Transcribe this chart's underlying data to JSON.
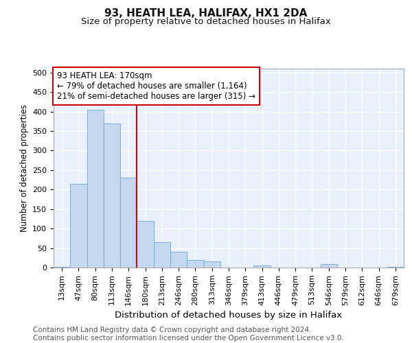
{
  "title": "93, HEATH LEA, HALIFAX, HX1 2DA",
  "subtitle": "Size of property relative to detached houses in Halifax",
  "xlabel": "Distribution of detached houses by size in Halifax",
  "ylabel": "Number of detached properties",
  "bar_labels": [
    "13sqm",
    "47sqm",
    "80sqm",
    "113sqm",
    "146sqm",
    "180sqm",
    "213sqm",
    "246sqm",
    "280sqm",
    "313sqm",
    "346sqm",
    "379sqm",
    "413sqm",
    "446sqm",
    "479sqm",
    "513sqm",
    "546sqm",
    "579sqm",
    "612sqm",
    "646sqm",
    "679sqm"
  ],
  "bar_values": [
    2,
    215,
    405,
    370,
    230,
    120,
    65,
    40,
    20,
    15,
    0,
    0,
    5,
    0,
    0,
    0,
    8,
    0,
    0,
    0,
    2
  ],
  "bar_color": "#c5d8f0",
  "bar_edge_color": "#7aafd4",
  "plot_bg_color": "#e8f0fb",
  "fig_bg_color": "#ffffff",
  "grid_color": "#ffffff",
  "vline_index": 5,
  "vline_color": "#cc0000",
  "annotation_line1": "93 HEATH LEA: 170sqm",
  "annotation_line2": "← 79% of detached houses are smaller (1,164)",
  "annotation_line3": "21% of semi-detached houses are larger (315) →",
  "annotation_box_edge_color": "#cc0000",
  "ylim_max": 510,
  "yticks": [
    0,
    50,
    100,
    150,
    200,
    250,
    300,
    350,
    400,
    450,
    500
  ],
  "footer": "Contains HM Land Registry data © Crown copyright and database right 2024.\nContains public sector information licensed under the Open Government Licence v3.0.",
  "title_fontsize": 11,
  "subtitle_fontsize": 9.5,
  "tick_fontsize": 8,
  "ylabel_fontsize": 8.5,
  "xlabel_fontsize": 9.5,
  "annotation_fontsize": 8.5,
  "footer_fontsize": 7.5
}
